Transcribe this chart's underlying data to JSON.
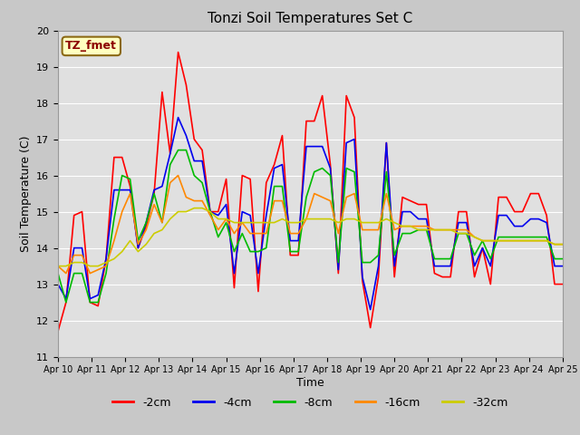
{
  "title": "Tonzi Soil Temperatures Set C",
  "xlabel": "Time",
  "ylabel": "Soil Temperature (C)",
  "ylim": [
    11.0,
    20.0
  ],
  "yticks": [
    11.0,
    12.0,
    13.0,
    14.0,
    15.0,
    16.0,
    17.0,
    18.0,
    19.0,
    20.0
  ],
  "xtick_labels": [
    "Apr 10",
    "Apr 11",
    "Apr 12",
    "Apr 13",
    "Apr 14",
    "Apr 15",
    "Apr 16",
    "Apr 17",
    "Apr 18",
    "Apr 19",
    "Apr 20",
    "Apr 21",
    "Apr 22",
    "Apr 23",
    "Apr 24",
    "Apr 25"
  ],
  "annotation_text": "TZ_fmet",
  "annotation_color": "#8B0000",
  "annotation_bg": "#FFFFC0",
  "annotation_border": "#8B6914",
  "series_order": [
    "-2cm",
    "-4cm",
    "-8cm",
    "-16cm",
    "-32cm"
  ],
  "series": {
    "-2cm": {
      "color": "#FF0000",
      "lw": 1.2
    },
    "-4cm": {
      "color": "#0000EE",
      "lw": 1.2
    },
    "-8cm": {
      "color": "#00BB00",
      "lw": 1.2
    },
    "-16cm": {
      "color": "#FF8800",
      "lw": 1.2
    },
    "-32cm": {
      "color": "#CCCC00",
      "lw": 1.2
    }
  },
  "fig_facecolor": "#C8C8C8",
  "ax_facecolor": "#E0E0E0",
  "grid_color": "#FFFFFF",
  "data": {
    "-2cm": [
      11.7,
      12.5,
      14.9,
      15.0,
      12.5,
      12.4,
      13.7,
      16.5,
      16.5,
      15.7,
      14.0,
      14.6,
      15.5,
      18.3,
      16.6,
      19.4,
      18.5,
      17.0,
      16.7,
      15.0,
      15.0,
      15.9,
      12.9,
      16.0,
      15.9,
      12.8,
      15.8,
      16.3,
      17.1,
      13.8,
      13.8,
      17.5,
      17.5,
      18.2,
      16.3,
      13.3,
      18.2,
      17.6,
      13.1,
      11.8,
      13.2,
      16.9,
      13.2,
      15.4,
      15.3,
      15.2,
      15.2,
      13.3,
      13.2,
      13.2,
      15.0,
      15.0,
      13.2,
      14.0,
      13.0,
      15.4,
      15.4,
      15.0,
      15.0,
      15.5,
      15.5,
      14.9,
      13.0,
      13.0
    ],
    "-4cm": [
      13.0,
      12.6,
      14.0,
      14.0,
      12.6,
      12.7,
      13.7,
      15.6,
      15.6,
      15.6,
      14.0,
      14.7,
      15.6,
      15.7,
      16.6,
      17.6,
      17.1,
      16.4,
      16.4,
      15.0,
      14.9,
      15.2,
      13.3,
      15.0,
      14.9,
      13.3,
      14.9,
      16.2,
      16.3,
      14.2,
      14.2,
      16.8,
      16.8,
      16.8,
      16.2,
      13.4,
      16.9,
      17.0,
      13.2,
      12.3,
      13.5,
      16.9,
      13.5,
      15.0,
      15.0,
      14.8,
      14.8,
      13.5,
      13.5,
      13.5,
      14.7,
      14.7,
      13.5,
      14.0,
      13.5,
      14.9,
      14.9,
      14.6,
      14.6,
      14.8,
      14.8,
      14.7,
      13.5,
      13.5
    ],
    "-8cm": [
      13.3,
      12.5,
      13.3,
      13.3,
      12.5,
      12.5,
      13.3,
      14.8,
      16.0,
      15.9,
      14.2,
      14.7,
      15.5,
      14.7,
      16.3,
      16.7,
      16.7,
      16.0,
      15.8,
      15.0,
      14.3,
      14.7,
      13.9,
      14.4,
      13.9,
      13.9,
      14.0,
      15.7,
      15.7,
      13.9,
      13.9,
      15.4,
      16.1,
      16.2,
      16.0,
      13.6,
      16.2,
      16.1,
      13.6,
      13.6,
      13.8,
      16.1,
      13.8,
      14.4,
      14.4,
      14.5,
      14.5,
      13.7,
      13.7,
      13.7,
      14.4,
      14.4,
      13.8,
      14.2,
      13.7,
      14.3,
      14.3,
      14.3,
      14.3,
      14.3,
      14.3,
      14.3,
      13.7,
      13.7
    ],
    "-16cm": [
      13.5,
      13.3,
      13.8,
      13.8,
      13.3,
      13.4,
      13.5,
      14.2,
      15.0,
      15.5,
      14.1,
      14.5,
      15.2,
      14.7,
      15.8,
      16.0,
      15.4,
      15.3,
      15.3,
      14.9,
      14.5,
      14.8,
      14.4,
      14.7,
      14.4,
      14.4,
      14.4,
      15.3,
      15.3,
      14.4,
      14.4,
      14.8,
      15.5,
      15.4,
      15.3,
      14.4,
      15.4,
      15.5,
      14.5,
      14.5,
      14.5,
      15.5,
      14.5,
      14.6,
      14.6,
      14.6,
      14.6,
      14.5,
      14.5,
      14.5,
      14.5,
      14.5,
      14.3,
      14.2,
      14.2,
      14.2,
      14.2,
      14.2,
      14.2,
      14.2,
      14.2,
      14.2,
      14.1,
      14.1
    ],
    "-32cm": [
      13.5,
      13.5,
      13.6,
      13.6,
      13.5,
      13.5,
      13.6,
      13.7,
      13.9,
      14.2,
      13.9,
      14.1,
      14.4,
      14.5,
      14.8,
      15.0,
      15.0,
      15.1,
      15.1,
      15.0,
      14.8,
      14.8,
      14.7,
      14.7,
      14.7,
      14.7,
      14.7,
      14.7,
      14.8,
      14.7,
      14.7,
      14.8,
      14.8,
      14.8,
      14.8,
      14.7,
      14.8,
      14.8,
      14.7,
      14.7,
      14.7,
      14.8,
      14.7,
      14.6,
      14.6,
      14.5,
      14.5,
      14.5,
      14.5,
      14.5,
      14.4,
      14.4,
      14.3,
      14.2,
      14.2,
      14.2,
      14.2,
      14.2,
      14.2,
      14.2,
      14.2,
      14.2,
      14.1,
      14.1
    ]
  }
}
